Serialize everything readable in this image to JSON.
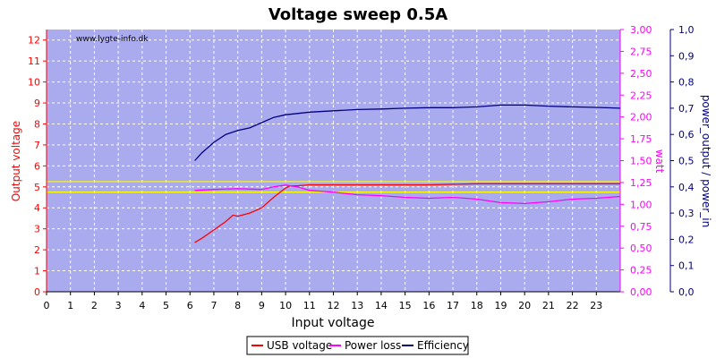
{
  "chart_data": {
    "type": "line",
    "title": "Voltage sweep 0.5A",
    "watermark": "www.lygte-info.dk",
    "xlabel": "Input voltage",
    "ylabel_left": "Output voltage",
    "ylabel_right1": "watt",
    "ylabel_right2": "power_output / power_in",
    "xlim": [
      0,
      24
    ],
    "x_ticks": [
      "0",
      "1",
      "2",
      "3",
      "4",
      "5",
      "6",
      "7",
      "8",
      "9",
      "10",
      "11",
      "12",
      "13",
      "14",
      "15",
      "16",
      "17",
      "18",
      "19",
      "20",
      "21",
      "22",
      "23"
    ],
    "y_left": {
      "lim": [
        0,
        12.5
      ],
      "ticks": [
        "0",
        "1",
        "2",
        "3",
        "4",
        "5",
        "6",
        "7",
        "8",
        "9",
        "10",
        "11",
        "12"
      ]
    },
    "y_right1": {
      "lim": [
        0,
        3.0
      ],
      "ticks": [
        "0,00",
        "0,25",
        "0,50",
        "0,75",
        "1,00",
        "1,25",
        "1,50",
        "1,75",
        "2,00",
        "2,25",
        "2,50",
        "2,75",
        "3,00"
      ]
    },
    "y_right2": {
      "lim": [
        0,
        1.0
      ],
      "ticks": [
        "0,0",
        "0,1",
        "0,2",
        "0,3",
        "0,4",
        "0,5",
        "0,6",
        "0,7",
        "0,8",
        "0,9",
        "1,0"
      ]
    },
    "grid": true,
    "legend_position": "bottom-center",
    "reference_lines": [
      {
        "axis": "left",
        "value": 5.25,
        "color": "#ffff00"
      },
      {
        "axis": "left",
        "value": 4.75,
        "color": "#ffff00"
      }
    ],
    "series": [
      {
        "name": "USB voltage",
        "axis": "left",
        "color": "#ff0000",
        "x": [
          6.2,
          6.5,
          7.0,
          7.5,
          7.8,
          8.0,
          8.5,
          9.0,
          9.5,
          10.0,
          10.2,
          10.5,
          11.0,
          12.0,
          14.0,
          16.0,
          18.0,
          20.0,
          22.0,
          24.0
        ],
        "y": [
          2.35,
          2.55,
          2.95,
          3.35,
          3.65,
          3.6,
          3.75,
          4.0,
          4.5,
          4.95,
          5.05,
          5.05,
          5.1,
          5.1,
          5.1,
          5.1,
          5.15,
          5.15,
          5.15,
          5.15
        ]
      },
      {
        "name": "Power loss",
        "axis": "right1",
        "color": "#ff00ff",
        "x": [
          6.2,
          7.0,
          8.0,
          9.0,
          9.5,
          10.0,
          10.5,
          11.0,
          12.0,
          13.0,
          14.0,
          15.0,
          16.0,
          17.0,
          18.0,
          19.0,
          20.0,
          21.0,
          22.0,
          23.0,
          24.0
        ],
        "y": [
          1.16,
          1.17,
          1.18,
          1.17,
          1.2,
          1.22,
          1.2,
          1.16,
          1.14,
          1.11,
          1.1,
          1.08,
          1.07,
          1.08,
          1.06,
          1.02,
          1.01,
          1.03,
          1.06,
          1.07,
          1.09
        ]
      },
      {
        "name": "Efficiency",
        "axis": "right2",
        "color": "#000080",
        "x": [
          6.2,
          6.5,
          7.0,
          7.5,
          8.0,
          8.5,
          9.0,
          9.5,
          10.0,
          10.5,
          11.0,
          12.0,
          13.0,
          14.0,
          15.0,
          16.0,
          17.0,
          18.0,
          19.0,
          20.0,
          21.0,
          22.0,
          23.0,
          24.0
        ],
        "y": [
          0.5,
          0.53,
          0.57,
          0.6,
          0.615,
          0.625,
          0.645,
          0.665,
          0.675,
          0.68,
          0.685,
          0.69,
          0.695,
          0.697,
          0.7,
          0.702,
          0.702,
          0.705,
          0.712,
          0.712,
          0.708,
          0.705,
          0.703,
          0.7
        ]
      }
    ]
  },
  "colors": {
    "plot_bg": "#aaaaee",
    "grid": "#ffffff",
    "left_axis": "#ff0000",
    "right1_axis": "#ff00ff",
    "right2_axis": "#000080"
  }
}
